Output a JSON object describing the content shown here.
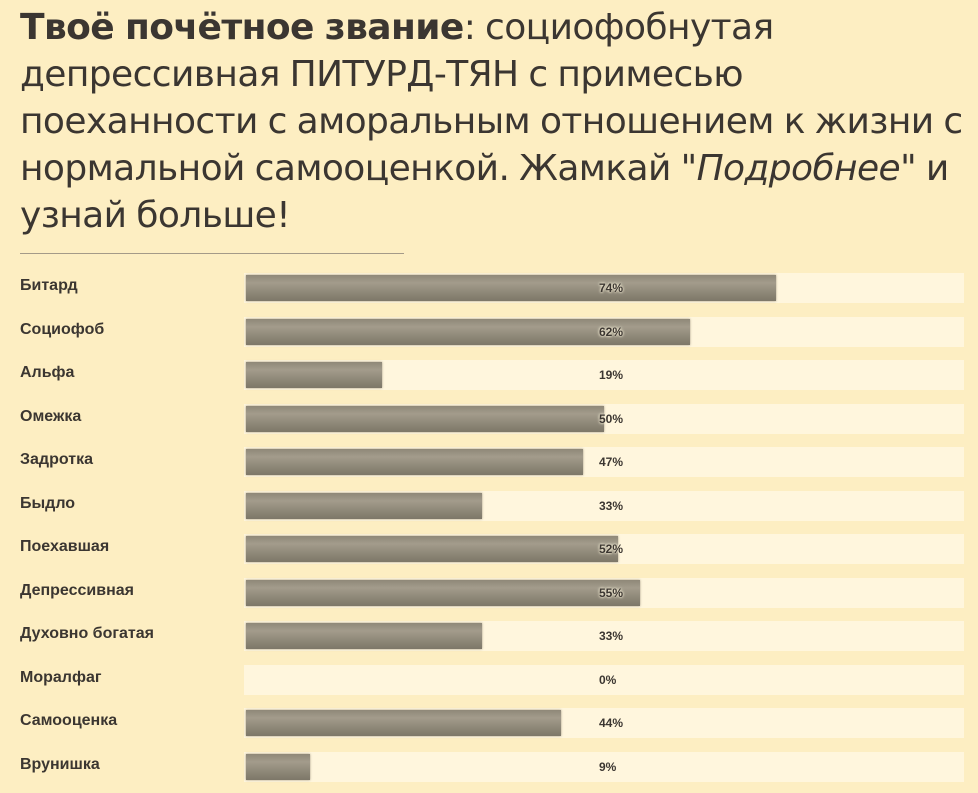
{
  "headline": {
    "title_bold": "Твоё почётное звание",
    "title_rest": ": социофобнутая депрессивная ПИТУРД-ТЯН с примесью поеханности с аморальным отношением к жизни с нормальной самооценкой. Жамкай \"",
    "link_text": "Подробнее",
    "title_end": "\" и узнай больше!"
  },
  "chart_data": {
    "type": "bar",
    "orientation": "horizontal",
    "categories": [
      "Битард",
      "Социофоб",
      "Альфа",
      "Омежка",
      "Задротка",
      "Быдло",
      "Поехавшая",
      "Депрессивная",
      "Духовно богатая",
      "Моралфаг",
      "Самооценка",
      "Врунишка"
    ],
    "values": [
      74,
      62,
      19,
      50,
      47,
      33,
      52,
      55,
      33,
      0,
      44,
      9
    ],
    "value_labels": [
      "74%",
      "62%",
      "19%",
      "50%",
      "47%",
      "33%",
      "52%",
      "55%",
      "33%",
      "0%",
      "44%",
      "9%"
    ],
    "xlim": [
      0,
      100
    ],
    "grid": false,
    "colors": {
      "background": "#fdeec2",
      "track": "#fff6dd",
      "bar": "#958e7e",
      "text": "#3b3631"
    }
  }
}
